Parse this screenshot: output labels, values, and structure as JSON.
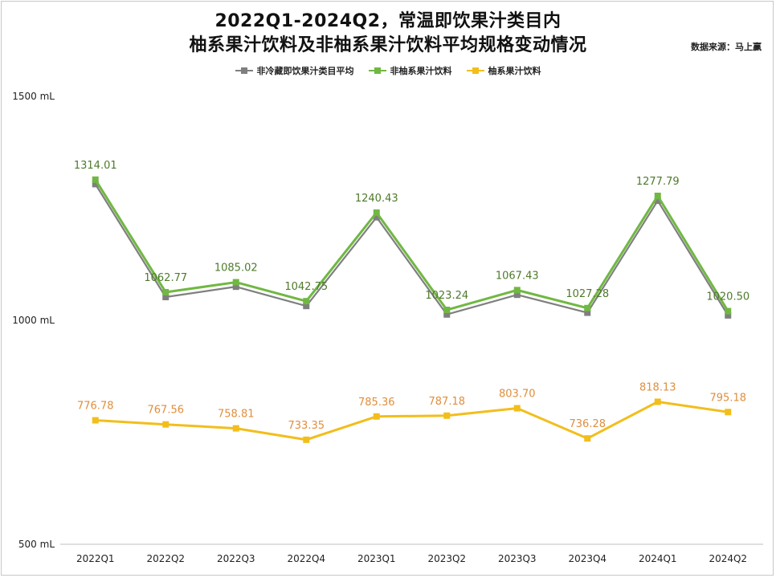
{
  "title_line1": "2022Q1-2024Q2，常温即饮果汁类目内",
  "title_line2": "柚系果汁饮料及非柚系果汁饮料平均规格变动情况",
  "source": "数据来源：马上赢",
  "chart_data": {
    "type": "line",
    "title": "2022Q1-2024Q2，常温即饮果汁类目内 柚系果汁饮料及非柚系果汁饮料平均规格变动情况",
    "categories": [
      "2022Q1",
      "2022Q2",
      "2022Q3",
      "2022Q4",
      "2023Q1",
      "2023Q2",
      "2023Q3",
      "2023Q4",
      "2024Q1",
      "2024Q2"
    ],
    "y_axis": {
      "ticks": [
        1500,
        1000,
        500
      ],
      "tick_labels": [
        "1500 mL",
        "1000 mL",
        "500 mL"
      ],
      "ylim": [
        500,
        1500
      ]
    },
    "series": [
      {
        "name": "非冷藏即饮果汁类目平均",
        "color": "#7f7f7f",
        "values": [
          1304,
          1052,
          1075,
          1032,
          1230,
          1013,
          1057,
          1017,
          1267,
          1011
        ],
        "labels": [
          "",
          "",
          "",
          "",
          "",
          "",
          "",
          "",
          "",
          ""
        ]
      },
      {
        "name": "非柚系果汁饮料",
        "color": "#70b842",
        "label_color": "#4e7a2b",
        "values": [
          1314.01,
          1062.77,
          1085.02,
          1042.75,
          1240.43,
          1023.24,
          1067.43,
          1027.28,
          1277.79,
          1020.5
        ],
        "labels": [
          "1314.01",
          "1062.77",
          "1085.02",
          "1042.75",
          "1240.43",
          "1023.24",
          "1067.43",
          "1027.28",
          "1277.79",
          "1020.50"
        ]
      },
      {
        "name": "柚系果汁饮料",
        "color": "#f2be1c",
        "label_color": "#e08e3c",
        "values": [
          776.78,
          767.56,
          758.81,
          733.35,
          785.36,
          787.18,
          803.7,
          736.28,
          818.13,
          795.18
        ],
        "labels": [
          "776.78",
          "767.56",
          "758.81",
          "733.35",
          "785.36",
          "787.18",
          "803.70",
          "736.28",
          "818.13",
          "795.18"
        ]
      }
    ],
    "legend": [
      "非冷藏即饮果汁类目平均",
      "非柚系果汁饮料",
      "柚系果汁饮料"
    ],
    "legend_position": "top-center",
    "grid": false
  }
}
